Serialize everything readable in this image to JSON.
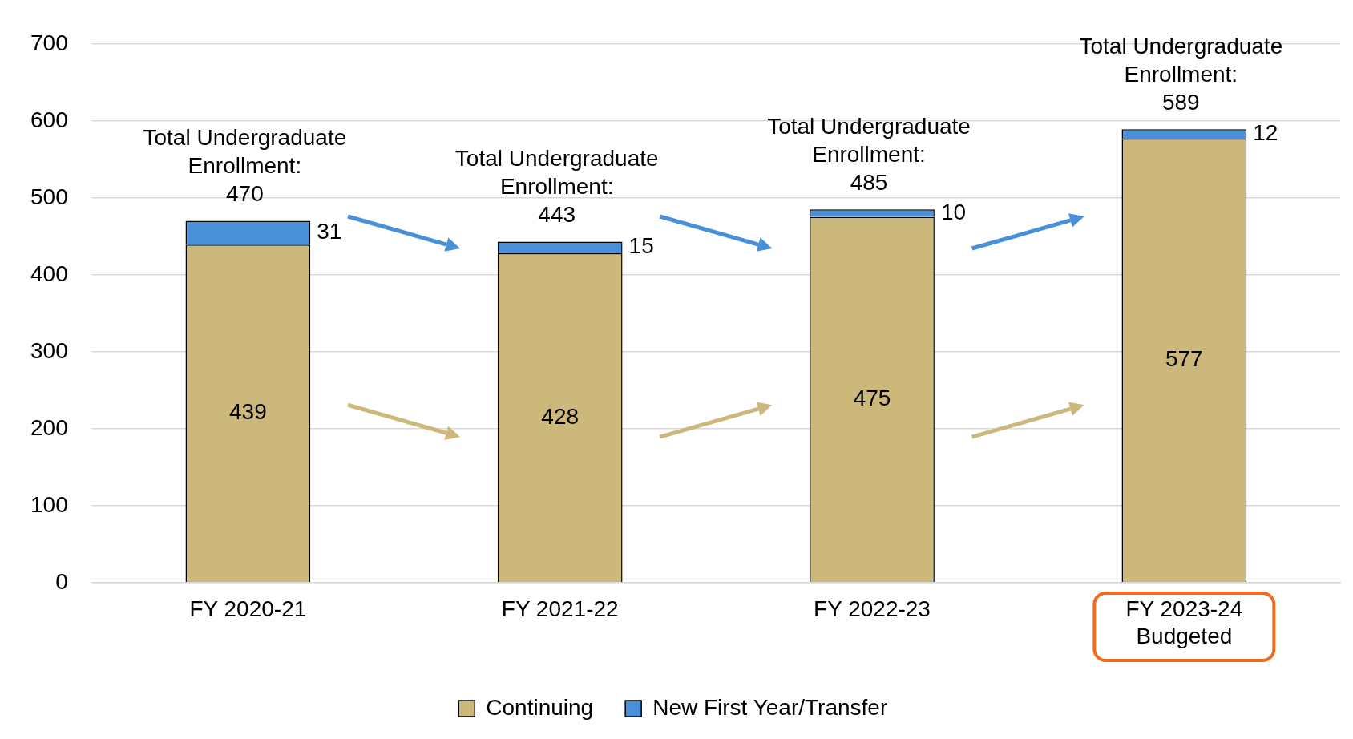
{
  "chart_data": {
    "type": "bar",
    "stacked": true,
    "categories": [
      "FY 2020-21",
      "FY 2021-22",
      "FY 2022-23",
      "FY 2023-24 Budgeted"
    ],
    "series": [
      {
        "name": "Continuing",
        "color": "#cdb87c",
        "values": [
          439,
          428,
          475,
          577
        ]
      },
      {
        "name": "New First Year/Transfer",
        "color": "#4a90d9",
        "values": [
          31,
          15,
          10,
          12
        ]
      }
    ],
    "totals": [
      "Total Undergraduate Enrollment: 470",
      "Total Undergraduate Enrollment: 443",
      "Total Undergraduate Enrollment: 485",
      "Total Undergraduate Enrollment: 589"
    ],
    "ylim": [
      0,
      700
    ],
    "yticks": [
      0,
      100,
      200,
      300,
      400,
      500,
      600,
      700
    ],
    "grid": "y",
    "legend": "bottom",
    "data_labels": true
  }
}
